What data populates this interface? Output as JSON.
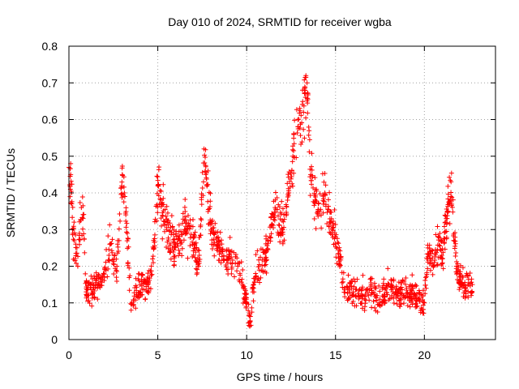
{
  "chart_data": {
    "type": "scatter",
    "title": "Day 010 of 2024, SRMTID for receiver wgba",
    "xlabel": "GPS time / hours",
    "ylabel": "SRMTID / TECUs",
    "xlim": [
      0,
      24
    ],
    "ylim": [
      0,
      0.8
    ],
    "x_ticks": [
      0,
      5,
      10,
      15,
      20
    ],
    "x_tick_labels": [
      "0",
      "5",
      "10",
      "15",
      "20"
    ],
    "y_ticks": [
      0,
      0.1,
      0.2,
      0.3,
      0.4,
      0.5,
      0.6,
      0.7,
      0.8
    ],
    "y_tick_labels": [
      "0",
      "0.1",
      "0.2",
      "0.3",
      "0.4",
      "0.5",
      "0.6",
      "0.7",
      "0.8"
    ],
    "grid": true,
    "marker": "+",
    "colors": {
      "series": "#ff0000",
      "grid": "#a0a0a0",
      "axis": "#000000"
    },
    "series": [
      {
        "name": "SRMTID",
        "x_range": [
          0,
          22.7
        ],
        "sample_points": [
          [
            0.1,
            0.45
          ],
          [
            0.15,
            0.4
          ],
          [
            0.2,
            0.3
          ],
          [
            0.3,
            0.27
          ],
          [
            0.5,
            0.2
          ],
          [
            0.7,
            0.36
          ],
          [
            0.8,
            0.33
          ],
          [
            1.0,
            0.12
          ],
          [
            1.5,
            0.15
          ],
          [
            2.0,
            0.17
          ],
          [
            2.3,
            0.26
          ],
          [
            2.7,
            0.2
          ],
          [
            3.0,
            0.45
          ],
          [
            3.2,
            0.34
          ],
          [
            3.5,
            0.08
          ],
          [
            4.0,
            0.15
          ],
          [
            4.5,
            0.14
          ],
          [
            4.8,
            0.25
          ],
          [
            5.0,
            0.42
          ],
          [
            5.5,
            0.3
          ],
          [
            6.0,
            0.26
          ],
          [
            6.5,
            0.3
          ],
          [
            7.0,
            0.28
          ],
          [
            7.3,
            0.2
          ],
          [
            7.6,
            0.52
          ],
          [
            7.7,
            0.45
          ],
          [
            8.0,
            0.3
          ],
          [
            8.5,
            0.25
          ],
          [
            9.0,
            0.22
          ],
          [
            9.5,
            0.2
          ],
          [
            10.0,
            0.1
          ],
          [
            10.2,
            0.05
          ],
          [
            10.5,
            0.18
          ],
          [
            11.0,
            0.22
          ],
          [
            11.3,
            0.28
          ],
          [
            11.6,
            0.36
          ],
          [
            12.0,
            0.3
          ],
          [
            12.3,
            0.38
          ],
          [
            12.6,
            0.5
          ],
          [
            12.9,
            0.58
          ],
          [
            13.2,
            0.62
          ],
          [
            13.4,
            0.7
          ],
          [
            13.6,
            0.45
          ],
          [
            14.0,
            0.35
          ],
          [
            14.4,
            0.4
          ],
          [
            14.8,
            0.3
          ],
          [
            15.0,
            0.28
          ],
          [
            15.5,
            0.14
          ],
          [
            16.0,
            0.13
          ],
          [
            16.5,
            0.12
          ],
          [
            17.0,
            0.14
          ],
          [
            17.5,
            0.11
          ],
          [
            18.0,
            0.15
          ],
          [
            18.5,
            0.12
          ],
          [
            19.0,
            0.14
          ],
          [
            19.5,
            0.12
          ],
          [
            20.0,
            0.1
          ],
          [
            20.2,
            0.25
          ],
          [
            20.5,
            0.2
          ],
          [
            20.8,
            0.28
          ],
          [
            21.0,
            0.22
          ],
          [
            21.3,
            0.35
          ],
          [
            21.5,
            0.43
          ],
          [
            21.8,
            0.2
          ],
          [
            22.0,
            0.16
          ],
          [
            22.3,
            0.14
          ],
          [
            22.7,
            0.15
          ]
        ]
      }
    ]
  }
}
